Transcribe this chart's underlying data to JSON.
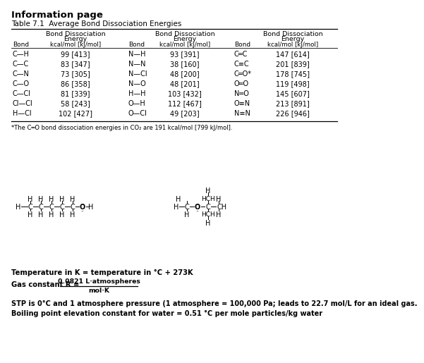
{
  "title": "Information page",
  "table_title": "Table 7.1  Average Bond Dissociation Energies",
  "rows": [
    [
      "C—H",
      "99 [413]",
      "N—H",
      "93 [391]",
      "C═C",
      "147 [614]"
    ],
    [
      "C—C",
      "83 [347]",
      "N—N",
      "38 [160]",
      "C≡C",
      "201 [839]"
    ],
    [
      "C—N",
      "73 [305]",
      "N—Cl",
      "48 [200]",
      "C═O*",
      "178 [745]"
    ],
    [
      "C—O",
      "86 [358]",
      "N—O",
      "48 [201]",
      "O═O",
      "119 [498]"
    ],
    [
      "C—Cl",
      "81 [339]",
      "H—H",
      "103 [432]",
      "N═O",
      "145 [607]"
    ],
    [
      "Cl—Cl",
      "58 [243]",
      "O—H",
      "112 [467]",
      "O≡N",
      "213 [891]"
    ],
    [
      "H—Cl",
      "102 [427]",
      "O—Cl",
      "49 [203]",
      "N≡N",
      "226 [946]"
    ]
  ],
  "footnote": "*The C═O bond dissociation energies in CO₂ are 191 kcal/mol [799 kJ/mol].",
  "temp_eq": "Temperature in K = temperature in °C + 273K",
  "gas_label": "Gas constant R = ",
  "gas_num": "0.0821 L·atmospheres",
  "gas_den": "mol·K",
  "stp": "STP is 0°C and 1 atmosphere pressure (1 atmosphere = 100,000 Pa; leads to 22.7 mol/L for an ideal gas.",
  "boiling": "Boiling point elevation constant for water = 0.51 °C per mole particles/kg water",
  "bg_color": "#ffffff"
}
